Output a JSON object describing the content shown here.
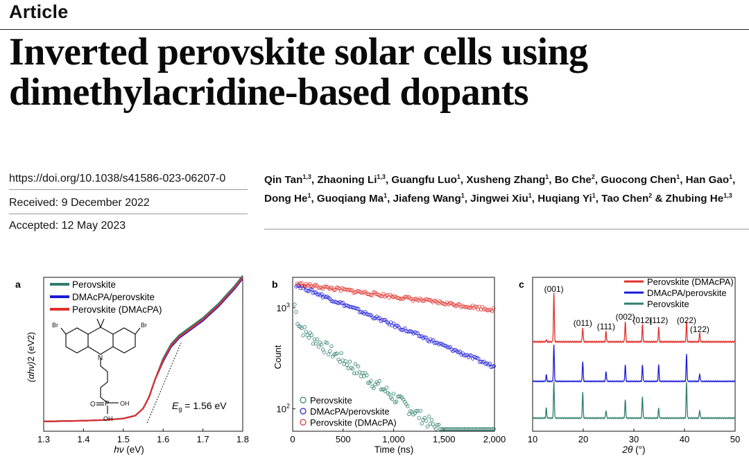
{
  "header": {
    "section": "Article",
    "title_line1": "Inverted perovskite solar cells using",
    "title_line2": "dimethylacridine-based dopants"
  },
  "meta": {
    "doi": "https://doi.org/10.1038/s41586-023-06207-0",
    "received": "Received: 9 December 2022",
    "accepted": "Accepted: 12 May 2023"
  },
  "authors": {
    "line1": [
      {
        "name": "Qin Tan",
        "sup": "1,3",
        "sep": ", "
      },
      {
        "name": "Zhaoning Li",
        "sup": "1,3",
        "sep": ", "
      },
      {
        "name": "Guangfu Luo",
        "sup": "1",
        "sep": ", "
      },
      {
        "name": "Xusheng Zhang",
        "sup": "1",
        "sep": ", "
      },
      {
        "name": "Bo Che",
        "sup": "2",
        "sep": ", "
      },
      {
        "name": "Guocong Chen",
        "sup": "1",
        "sep": ", "
      },
      {
        "name": "Han Gao",
        "sup": "1",
        "sep": ","
      }
    ],
    "line2": [
      {
        "name": "Dong He",
        "sup": "1",
        "sep": ", "
      },
      {
        "name": "Guoqiang Ma",
        "sup": "1",
        "sep": ", "
      },
      {
        "name": "Jiafeng Wang",
        "sup": "1",
        "sep": ", "
      },
      {
        "name": "Jingwei Xiu",
        "sup": "1",
        "sep": ", "
      },
      {
        "name": "Huqiang Yi",
        "sup": "1",
        "sep": ", "
      },
      {
        "name": "Tao Chen",
        "sup": "2",
        "sep": " & "
      },
      {
        "name": "Zhubing He",
        "sup": "1,3",
        "sep": ""
      }
    ]
  },
  "colors": {
    "perovskite": "#2e7d6e",
    "dmacpa_perovskite": "#1a1ad6",
    "perovskite_dmacpa": "#e0302a"
  },
  "chart_data": [
    {
      "panel": "a",
      "type": "line",
      "xlabel_italic": "hν",
      "xlabel_unit": " (eV)",
      "ylabel_italic": "(αhν)",
      "ylabel_unit": "2 (eV2)",
      "xlim": [
        1.3,
        1.8
      ],
      "x_ticks": [
        "1.3",
        "1.4",
        "1.5",
        "1.6",
        "1.7",
        "1.8"
      ],
      "legend": [
        "Perovskite",
        "DMAcPA/perovskite",
        "Perovskite (DMAcPA)"
      ],
      "annotation_italic": "E",
      "annotation_sub": "g",
      "annotation_rest": " = 1.56 eV",
      "molecule_labels": {
        "br1": "Br",
        "br2": "Br",
        "n": "N",
        "p": "P",
        "o": "O",
        "oh1": "OH",
        "oh2": "OH"
      },
      "series_curve": [
        [
          1.3,
          0.01
        ],
        [
          1.4,
          0.015
        ],
        [
          1.45,
          0.02
        ],
        [
          1.5,
          0.03
        ],
        [
          1.53,
          0.05
        ],
        [
          1.55,
          0.1
        ],
        [
          1.565,
          0.18
        ],
        [
          1.58,
          0.3
        ],
        [
          1.6,
          0.43
        ],
        [
          1.62,
          0.53
        ],
        [
          1.64,
          0.59
        ],
        [
          1.66,
          0.63
        ],
        [
          1.68,
          0.67
        ],
        [
          1.7,
          0.71
        ],
        [
          1.72,
          0.76
        ],
        [
          1.74,
          0.81
        ],
        [
          1.76,
          0.87
        ],
        [
          1.78,
          0.93
        ],
        [
          1.8,
          1.0
        ]
      ],
      "tangent": [
        [
          1.56,
          0.0
        ],
        [
          1.645,
          0.55
        ]
      ]
    },
    {
      "panel": "b",
      "type": "scatter",
      "xlabel": "Time (ns)",
      "ylabel": "Count",
      "y_scale": "log",
      "xlim": [
        0,
        2000
      ],
      "ylim": [
        60,
        2000
      ],
      "x_ticks": [
        "0",
        "500",
        "1,000",
        "1,500",
        "2,000"
      ],
      "y_tick_base": "10",
      "y_ticks": [
        {
          "exp": "3",
          "value": 1000
        },
        {
          "exp": "2",
          "value": 100
        }
      ],
      "legend": [
        "Perovskite",
        "DMAcPA/perovskite",
        "Perovskite (DMAcPA)"
      ],
      "series": [
        {
          "name": "Perovskite",
          "a1": 900,
          "tau1": 25,
          "a2": 700,
          "tau2": 600,
          "base": 0,
          "start": 20
        },
        {
          "name": "DMAcPA/perovskite",
          "a1": 0,
          "tau1": 1,
          "a2": 1750,
          "tau2": 1050,
          "base": 0,
          "start": 35
        },
        {
          "name": "Perovskite (DMAcPA)",
          "a1": 0,
          "tau1": 1,
          "a2": 1750,
          "tau2": 3300,
          "base": 0,
          "start": 45
        }
      ]
    },
    {
      "panel": "c",
      "type": "line",
      "xlabel_italic": "2θ",
      "xlabel_unit": " (°)",
      "xlim": [
        10,
        50
      ],
      "x_ticks": [
        "10",
        "20",
        "30",
        "40",
        "50"
      ],
      "legend": [
        "Perovskite (DMAcPA)",
        "DMAcPA/perovskite",
        "Perovskite"
      ],
      "peak_labels": [
        {
          "label": "(001)",
          "x": 14.2
        },
        {
          "label": "(011)",
          "x": 19.9
        },
        {
          "label": "(111)",
          "x": 24.5
        },
        {
          "label": "(002)",
          "x": 28.3
        },
        {
          "label": "(012)",
          "x": 31.7
        },
        {
          "label": "(112)",
          "x": 34.9
        },
        {
          "label": "(022)",
          "x": 40.4
        },
        {
          "label": "(122)",
          "x": 43.0
        }
      ],
      "series": [
        {
          "name": "Perovskite (DMAcPA)",
          "peaks": [
            [
              12.7,
              0.04
            ],
            [
              14.2,
              1.0
            ],
            [
              19.9,
              0.3
            ],
            [
              24.5,
              0.22
            ],
            [
              28.3,
              0.42
            ],
            [
              31.7,
              0.35
            ],
            [
              34.9,
              0.3
            ],
            [
              40.4,
              0.4
            ],
            [
              43.0,
              0.18
            ]
          ]
        },
        {
          "name": "DMAcPA/perovskite",
          "peaks": [
            [
              12.7,
              0.18
            ],
            [
              14.2,
              1.0
            ],
            [
              19.9,
              0.55
            ],
            [
              24.5,
              0.28
            ],
            [
              28.3,
              0.45
            ],
            [
              31.7,
              0.45
            ],
            [
              34.9,
              0.45
            ],
            [
              40.4,
              0.75
            ],
            [
              43.0,
              0.2
            ]
          ]
        },
        {
          "name": "Perovskite",
          "peaks": [
            [
              12.7,
              0.25
            ],
            [
              14.2,
              0.92
            ],
            [
              19.9,
              0.65
            ],
            [
              24.5,
              0.2
            ],
            [
              28.3,
              0.45
            ],
            [
              31.7,
              0.55
            ],
            [
              34.9,
              0.25
            ],
            [
              40.4,
              0.92
            ],
            [
              43.0,
              0.2
            ]
          ]
        }
      ]
    }
  ]
}
